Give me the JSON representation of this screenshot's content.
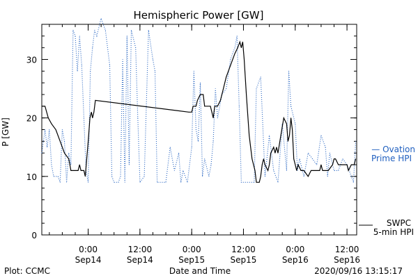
{
  "chart_data": {
    "type": "line",
    "title": "Hemispheric Power [GW]",
    "xlabel": "Date and Time",
    "ylabel": "P [GW]",
    "ylim": [
      0,
      36
    ],
    "xlim": [
      "2020-09-13T13:15",
      "2020-09-16T14:15"
    ],
    "grid": false,
    "y_ticks": [
      0,
      10,
      20,
      30
    ],
    "x_ticks": [
      {
        "t": "2020-09-14T00:00",
        "time": "0:00",
        "date": "Sep14"
      },
      {
        "t": "2020-09-14T12:00",
        "time": "12:00",
        "date": "Sep14"
      },
      {
        "t": "2020-09-15T00:00",
        "time": "0:00",
        "date": "Sep15"
      },
      {
        "t": "2020-09-15T12:00",
        "time": "12:00",
        "date": "Sep15"
      },
      {
        "t": "2020-09-16T00:00",
        "time": "0:00",
        "date": "Sep16"
      },
      {
        "t": "2020-09-16T12:00",
        "time": "12:00",
        "date": "Sep16"
      }
    ],
    "series": [
      {
        "name": "SWPC 5-min HPI",
        "color": "#000000",
        "style": "solid",
        "points": [
          [
            "2020-09-13T13:15",
            22
          ],
          [
            "2020-09-13T14:00",
            22
          ],
          [
            "2020-09-13T14:45",
            20
          ],
          [
            "2020-09-13T15:30",
            19
          ],
          [
            "2020-09-13T16:30",
            18
          ],
          [
            "2020-09-13T17:30",
            16
          ],
          [
            "2020-09-13T18:30",
            14
          ],
          [
            "2020-09-13T19:30",
            13
          ],
          [
            "2020-09-13T20:00",
            11
          ],
          [
            "2020-09-13T21:00",
            11
          ],
          [
            "2020-09-13T21:40",
            11
          ],
          [
            "2020-09-13T22:00",
            12
          ],
          [
            "2020-09-13T22:20",
            11
          ],
          [
            "2020-09-13T23:00",
            11
          ],
          [
            "2020-09-13T23:20",
            10
          ],
          [
            "2020-09-13T23:40",
            13
          ],
          [
            "2020-09-14T00:00",
            16
          ],
          [
            "2020-09-14T00:25",
            20
          ],
          [
            "2020-09-14T00:45",
            21
          ],
          [
            "2020-09-14T01:00",
            20
          ],
          [
            "2020-09-14T01:20",
            21
          ],
          [
            "2020-09-14T01:40",
            23
          ],
          [
            "2020-09-14T23:20",
            21
          ],
          [
            "2020-09-15T00:00",
            21
          ],
          [
            "2020-09-15T00:20",
            22
          ],
          [
            "2020-09-15T01:00",
            22
          ],
          [
            "2020-09-15T01:20",
            23
          ],
          [
            "2020-09-15T02:00",
            24
          ],
          [
            "2020-09-15T02:40",
            24
          ],
          [
            "2020-09-15T03:00",
            22
          ],
          [
            "2020-09-15T03:40",
            22
          ],
          [
            "2020-09-15T04:20",
            22
          ],
          [
            "2020-09-15T04:40",
            21
          ],
          [
            "2020-09-15T05:00",
            20
          ],
          [
            "2020-09-15T05:20",
            22
          ],
          [
            "2020-09-15T06:00",
            22
          ],
          [
            "2020-09-15T06:40",
            23
          ],
          [
            "2020-09-15T07:20",
            25
          ],
          [
            "2020-09-15T08:00",
            27
          ],
          [
            "2020-09-15T09:00",
            29
          ],
          [
            "2020-09-15T10:00",
            31
          ],
          [
            "2020-09-15T10:40",
            32
          ],
          [
            "2020-09-15T11:10",
            33
          ],
          [
            "2020-09-15T11:30",
            32
          ],
          [
            "2020-09-15T11:50",
            33
          ],
          [
            "2020-09-15T12:10",
            30
          ],
          [
            "2020-09-15T12:40",
            24
          ],
          [
            "2020-09-15T13:20",
            17
          ],
          [
            "2020-09-15T14:00",
            13
          ],
          [
            "2020-09-15T14:40",
            11
          ],
          [
            "2020-09-15T15:00",
            9
          ],
          [
            "2020-09-15T15:40",
            9
          ],
          [
            "2020-09-15T16:00",
            10
          ],
          [
            "2020-09-15T16:20",
            12
          ],
          [
            "2020-09-15T16:40",
            13
          ],
          [
            "2020-09-15T17:00",
            12
          ],
          [
            "2020-09-15T17:40",
            11
          ],
          [
            "2020-09-15T18:00",
            12
          ],
          [
            "2020-09-15T18:20",
            14
          ],
          [
            "2020-09-15T19:00",
            15
          ],
          [
            "2020-09-15T19:20",
            14
          ],
          [
            "2020-09-15T19:40",
            15
          ],
          [
            "2020-09-15T20:00",
            14
          ],
          [
            "2020-09-15T20:40",
            17
          ],
          [
            "2020-09-15T21:20",
            20
          ],
          [
            "2020-09-15T22:00",
            19
          ],
          [
            "2020-09-15T22:20",
            16
          ],
          [
            "2020-09-15T22:40",
            17
          ],
          [
            "2020-09-15T23:00",
            20
          ],
          [
            "2020-09-15T23:20",
            18
          ],
          [
            "2020-09-15T23:40",
            13
          ],
          [
            "2020-09-16T00:00",
            12
          ],
          [
            "2020-09-16T00:20",
            11
          ],
          [
            "2020-09-16T00:40",
            12
          ],
          [
            "2020-09-16T01:20",
            11
          ],
          [
            "2020-09-16T02:00",
            11
          ],
          [
            "2020-09-16T03:00",
            10
          ],
          [
            "2020-09-16T03:40",
            11
          ],
          [
            "2020-09-16T04:20",
            11
          ],
          [
            "2020-09-16T05:00",
            11
          ],
          [
            "2020-09-16T05:40",
            11
          ],
          [
            "2020-09-16T06:00",
            12
          ],
          [
            "2020-09-16T06:20",
            11
          ],
          [
            "2020-09-16T07:00",
            11
          ],
          [
            "2020-09-16T07:40",
            11
          ],
          [
            "2020-09-16T08:40",
            12
          ],
          [
            "2020-09-16T09:00",
            13
          ],
          [
            "2020-09-16T09:20",
            13
          ],
          [
            "2020-09-16T10:00",
            12
          ],
          [
            "2020-09-16T10:40",
            12
          ],
          [
            "2020-09-16T11:20",
            12
          ],
          [
            "2020-09-16T12:00",
            12
          ],
          [
            "2020-09-16T12:20",
            11
          ],
          [
            "2020-09-16T13:00",
            12
          ],
          [
            "2020-09-16T13:40",
            12
          ],
          [
            "2020-09-16T14:00",
            13
          ]
        ]
      },
      {
        "name": "Ovation Prime HPI",
        "color": "#1f5fbf",
        "style": "dotted",
        "points": [
          [
            "2020-09-13T13:15",
            14
          ],
          [
            "2020-09-13T14:00",
            18
          ],
          [
            "2020-09-13T14:30",
            15
          ],
          [
            "2020-09-13T15:00",
            18
          ],
          [
            "2020-09-13T15:30",
            12
          ],
          [
            "2020-09-13T16:00",
            10
          ],
          [
            "2020-09-13T17:00",
            10
          ],
          [
            "2020-09-13T17:30",
            9
          ],
          [
            "2020-09-13T18:00",
            18
          ],
          [
            "2020-09-13T18:30",
            16
          ],
          [
            "2020-09-13T19:00",
            9
          ],
          [
            "2020-09-13T19:30",
            14
          ],
          [
            "2020-09-13T20:00",
            12
          ],
          [
            "2020-09-13T20:30",
            35
          ],
          [
            "2020-09-13T21:00",
            34
          ],
          [
            "2020-09-13T21:30",
            28
          ],
          [
            "2020-09-13T22:00",
            34
          ],
          [
            "2020-09-13T22:30",
            29
          ],
          [
            "2020-09-13T23:00",
            20
          ],
          [
            "2020-09-13T23:30",
            11
          ],
          [
            "2020-09-14T00:00",
            9
          ],
          [
            "2020-09-14T00:30",
            28
          ],
          [
            "2020-09-14T01:00",
            32
          ],
          [
            "2020-09-14T01:30",
            35
          ],
          [
            "2020-09-14T02:00",
            34
          ],
          [
            "2020-09-14T03:00",
            37
          ],
          [
            "2020-09-14T04:00",
            35
          ],
          [
            "2020-09-14T05:00",
            29
          ],
          [
            "2020-09-14T05:30",
            10
          ],
          [
            "2020-09-14T06:00",
            9
          ],
          [
            "2020-09-14T07:00",
            9
          ],
          [
            "2020-09-14T07:30",
            10
          ],
          [
            "2020-09-14T08:00",
            30
          ],
          [
            "2020-09-14T08:30",
            9
          ],
          [
            "2020-09-14T09:00",
            34
          ],
          [
            "2020-09-14T09:30",
            12
          ],
          [
            "2020-09-14T10:00",
            35
          ],
          [
            "2020-09-14T11:00",
            32
          ],
          [
            "2020-09-14T11:30",
            20
          ],
          [
            "2020-09-14T12:00",
            9
          ],
          [
            "2020-09-14T13:00",
            10
          ],
          [
            "2020-09-14T14:00",
            35
          ],
          [
            "2020-09-14T15:00",
            30
          ],
          [
            "2020-09-14T15:30",
            28
          ],
          [
            "2020-09-14T16:00",
            9
          ],
          [
            "2020-09-14T18:00",
            9
          ],
          [
            "2020-09-14T19:00",
            15
          ],
          [
            "2020-09-14T20:00",
            11
          ],
          [
            "2020-09-14T21:00",
            14
          ],
          [
            "2020-09-14T21:30",
            9
          ],
          [
            "2020-09-14T22:00",
            11
          ],
          [
            "2020-09-14T23:00",
            9
          ],
          [
            "2020-09-15T00:00",
            15
          ],
          [
            "2020-09-15T00:30",
            28
          ],
          [
            "2020-09-15T01:00",
            18
          ],
          [
            "2020-09-15T01:30",
            16
          ],
          [
            "2020-09-15T02:00",
            26
          ],
          [
            "2020-09-15T02:30",
            10
          ],
          [
            "2020-09-15T03:00",
            13
          ],
          [
            "2020-09-15T04:00",
            10
          ],
          [
            "2020-09-15T04:30",
            12
          ],
          [
            "2020-09-15T05:00",
            16
          ],
          [
            "2020-09-15T05:30",
            25
          ],
          [
            "2020-09-15T06:00",
            20
          ],
          [
            "2020-09-15T07:00",
            24
          ],
          [
            "2020-09-15T08:00",
            25
          ],
          [
            "2020-09-15T09:00",
            30
          ],
          [
            "2020-09-15T10:00",
            32
          ],
          [
            "2020-09-15T10:30",
            34
          ],
          [
            "2020-09-15T11:00",
            22
          ],
          [
            "2020-09-15T11:30",
            9
          ],
          [
            "2020-09-15T14:30",
            9
          ],
          [
            "2020-09-15T15:00",
            25
          ],
          [
            "2020-09-15T16:00",
            27
          ],
          [
            "2020-09-15T17:00",
            10
          ],
          [
            "2020-09-15T18:00",
            17
          ],
          [
            "2020-09-15T19:00",
            11
          ],
          [
            "2020-09-15T20:00",
            9
          ],
          [
            "2020-09-15T21:00",
            19
          ],
          [
            "2020-09-15T22:00",
            11
          ],
          [
            "2020-09-15T22:30",
            28
          ],
          [
            "2020-09-15T23:00",
            22
          ],
          [
            "2020-09-16T00:00",
            19
          ],
          [
            "2020-09-16T00:30",
            11
          ],
          [
            "2020-09-16T01:00",
            13
          ],
          [
            "2020-09-16T02:00",
            10
          ],
          [
            "2020-09-16T03:00",
            14
          ],
          [
            "2020-09-16T04:00",
            13
          ],
          [
            "2020-09-16T05:00",
            12
          ],
          [
            "2020-09-16T06:00",
            17
          ],
          [
            "2020-09-16T07:00",
            15
          ],
          [
            "2020-09-16T07:30",
            10
          ],
          [
            "2020-09-16T08:00",
            14
          ],
          [
            "2020-09-16T09:00",
            11
          ],
          [
            "2020-09-16T10:00",
            11
          ],
          [
            "2020-09-16T11:00",
            13
          ],
          [
            "2020-09-16T12:00",
            12
          ],
          [
            "2020-09-16T13:00",
            10
          ],
          [
            "2020-09-16T13:30",
            9
          ],
          [
            "2020-09-16T14:00",
            16
          ]
        ]
      }
    ],
    "legend": [
      {
        "series": "Ovation Prime HPI",
        "line1": "— Ovation",
        "line2": "Prime HPI",
        "color": "#1f5fbf"
      },
      {
        "series": "SWPC 5-min HPI",
        "line1": "SWPC",
        "line2": "5-min HPI",
        "color": "#000000"
      }
    ]
  },
  "footer": {
    "credit": "Plot: CCMC",
    "timestamp": "2020/09/16 13:15:17"
  }
}
